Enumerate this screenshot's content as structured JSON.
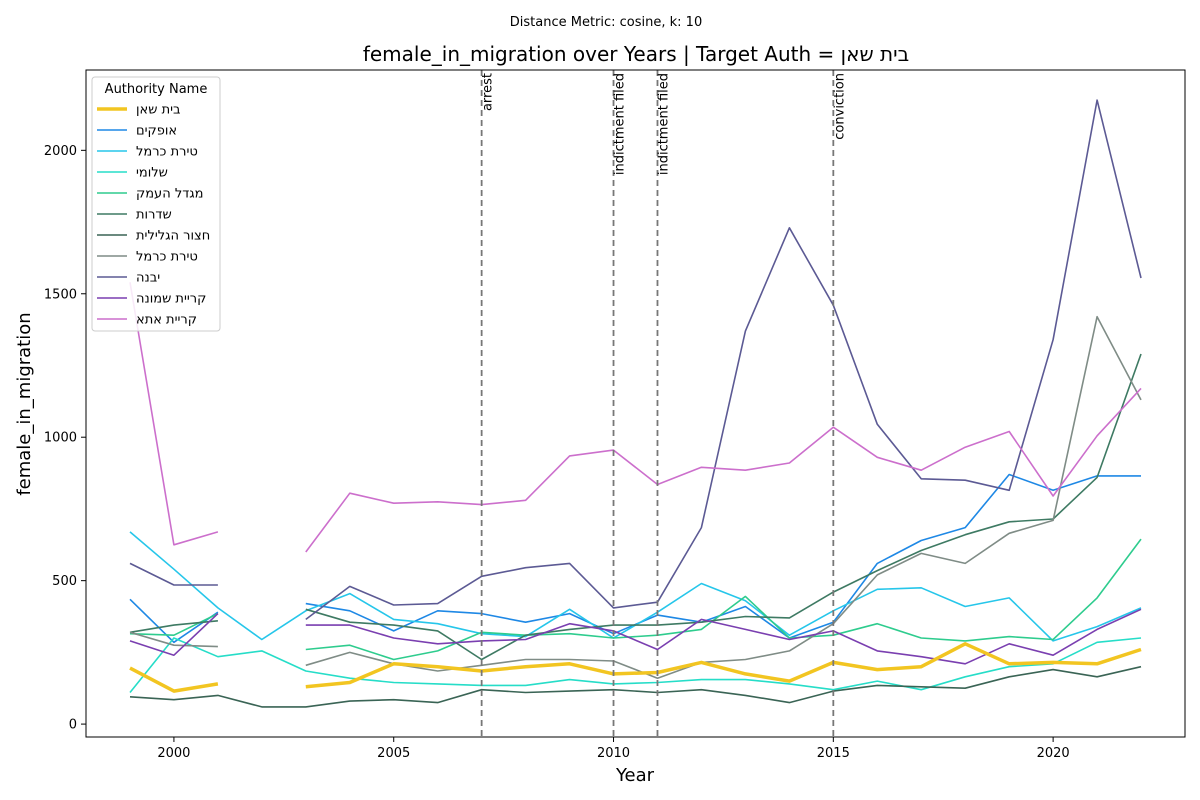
{
  "chart_data": {
    "type": "line",
    "subtitle": "Distance Metric: cosine, k: 10",
    "title": "female_in_migration over Years | Target Auth = בית שאן",
    "xlabel": "Year",
    "ylabel": "female_in_migration",
    "xlim": [
      1998,
      2023
    ],
    "ylim": [
      -45,
      2280
    ],
    "xticks": [
      2000,
      2005,
      2010,
      2015,
      2020
    ],
    "yticks": [
      0,
      500,
      1000,
      1500,
      2000
    ],
    "grid": false,
    "legend": {
      "title": "Authority Name",
      "placement": "top-left"
    },
    "events": [
      {
        "x": 2007,
        "label": "arrest"
      },
      {
        "x": 2010,
        "label": "indictment filed"
      },
      {
        "x": 2011,
        "label": "indictment filed"
      },
      {
        "x": 2015,
        "label": "conviction"
      }
    ],
    "years": [
      1999,
      2000,
      2001,
      2002,
      2003,
      2004,
      2005,
      2006,
      2007,
      2008,
      2009,
      2010,
      2011,
      2012,
      2013,
      2014,
      2015,
      2016,
      2017,
      2018,
      2019,
      2020,
      2021,
      2022
    ],
    "series": [
      {
        "name": "בית שאן",
        "color": "#f2c521",
        "width": 3.5,
        "values": [
          195,
          115,
          140,
          null,
          130,
          145,
          210,
          200,
          185,
          200,
          210,
          175,
          180,
          215,
          175,
          150,
          215,
          190,
          200,
          280,
          210,
          215,
          210,
          260
        ]
      },
      {
        "name": "אופקים",
        "color": "#1e88e5",
        "width": 1.6,
        "values": [
          435,
          285,
          390,
          null,
          420,
          395,
          325,
          395,
          385,
          355,
          385,
          315,
          380,
          355,
          410,
          300,
          355,
          560,
          640,
          685,
          870,
          815,
          865,
          865
        ]
      },
      {
        "name": "טירת כרמל",
        "color": "#26c6ea",
        "width": 1.6,
        "values": [
          670,
          540,
          405,
          295,
          395,
          455,
          365,
          350,
          315,
          305,
          400,
          300,
          390,
          490,
          430,
          310,
          395,
          470,
          475,
          410,
          440,
          290,
          340,
          405
        ]
      },
      {
        "name": "שלומי",
        "color": "#26ddc8",
        "width": 1.6,
        "values": [
          110,
          300,
          235,
          255,
          185,
          160,
          145,
          140,
          135,
          135,
          155,
          140,
          145,
          155,
          155,
          140,
          120,
          150,
          120,
          165,
          200,
          210,
          285,
          300
        ]
      },
      {
        "name": "מגדל העמק",
        "color": "#2ecc8e",
        "width": 1.6,
        "values": [
          315,
          310,
          385,
          null,
          260,
          275,
          225,
          255,
          320,
          310,
          315,
          300,
          310,
          330,
          445,
          300,
          310,
          350,
          300,
          290,
          305,
          295,
          440,
          645
        ]
      },
      {
        "name": "שדרות",
        "color": "#3e7a63",
        "width": 1.6,
        "values": [
          320,
          345,
          360,
          null,
          400,
          355,
          345,
          325,
          225,
          310,
          330,
          345,
          345,
          355,
          375,
          370,
          460,
          535,
          605,
          660,
          705,
          715,
          860,
          1290
        ]
      },
      {
        "name": "חצור הגלילית",
        "color": "#3a6455",
        "width": 1.6,
        "values": [
          95,
          85,
          100,
          60,
          60,
          80,
          85,
          75,
          120,
          110,
          115,
          120,
          110,
          120,
          100,
          75,
          115,
          135,
          130,
          125,
          165,
          190,
          165,
          200
        ]
      },
      {
        "name": "טירת כרמל",
        "color": "#7f8c86",
        "width": 1.6,
        "values": [
          320,
          275,
          270,
          null,
          205,
          250,
          210,
          185,
          205,
          225,
          225,
          220,
          160,
          215,
          225,
          255,
          350,
          520,
          595,
          560,
          665,
          710,
          1420,
          1130
        ]
      },
      {
        "name": "יבנה",
        "color": "#5c5a94",
        "width": 1.6,
        "values": [
          560,
          485,
          485,
          null,
          365,
          480,
          415,
          420,
          515,
          545,
          560,
          405,
          425,
          685,
          1370,
          1730,
          1460,
          1045,
          855,
          850,
          815,
          1340,
          2175,
          1555
        ]
      },
      {
        "name": "קריית שמונה",
        "color": "#7a3fb0",
        "width": 1.6,
        "values": [
          290,
          240,
          385,
          null,
          345,
          345,
          300,
          280,
          290,
          295,
          350,
          325,
          260,
          365,
          330,
          295,
          325,
          255,
          235,
          210,
          280,
          240,
          330,
          400
        ]
      },
      {
        "name": "קריית אתא",
        "color": "#cc6fcc",
        "width": 1.6,
        "values": [
          1540,
          625,
          670,
          null,
          600,
          805,
          770,
          775,
          765,
          780,
          935,
          955,
          835,
          895,
          885,
          910,
          1035,
          930,
          885,
          965,
          1020,
          795,
          1005,
          1170
        ]
      }
    ]
  }
}
